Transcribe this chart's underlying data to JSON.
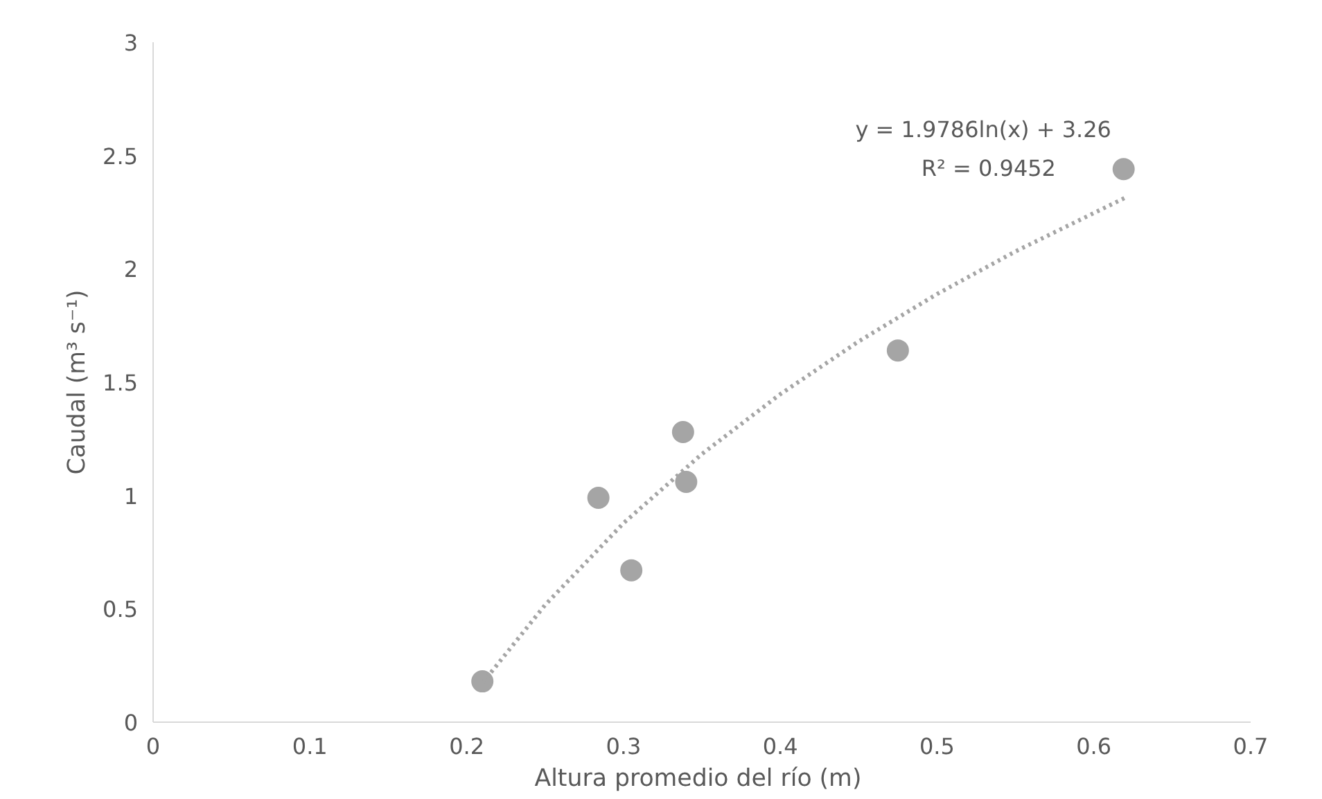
{
  "chart_data": {
    "type": "scatter",
    "xlabel": "Altura promedio  del río (m)",
    "ylabel": "Caudal (m³ s⁻¹)",
    "xlim": [
      0,
      0.7
    ],
    "ylim": [
      0,
      3
    ],
    "xticks": [
      0,
      0.1,
      0.2,
      0.3,
      0.4,
      0.5,
      0.6,
      0.7
    ],
    "yticks": [
      0,
      0.5,
      1,
      1.5,
      2,
      2.5,
      3
    ],
    "grid": false,
    "series": [
      {
        "marker": "circle",
        "color": "#a5a5a5",
        "x": [
          0.21,
          0.284,
          0.305,
          0.338,
          0.34,
          0.475,
          0.619
        ],
        "values": [
          0.18,
          0.99,
          0.67,
          1.28,
          1.06,
          1.64,
          2.44
        ]
      },
      {
        "type": "line",
        "marker": "none",
        "line_style": "dotted",
        "color": "#a5a5a5",
        "x": [
          0.21,
          0.25,
          0.3,
          0.35,
          0.4,
          0.45,
          0.5,
          0.55,
          0.62
        ],
        "values": [
          0.172,
          0.517,
          0.878,
          1.183,
          1.447,
          1.68,
          1.889,
          2.077,
          2.314
        ]
      }
    ],
    "annotations": [
      "y = 1.9786ln(x) + 3.26",
      "R² = 0.9452"
    ]
  }
}
